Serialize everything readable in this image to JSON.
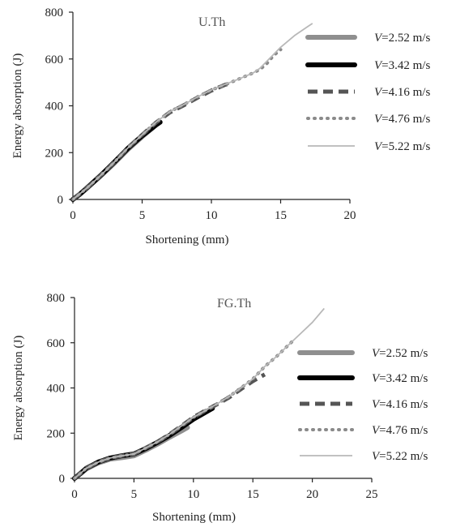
{
  "chart_data": [
    {
      "type": "line",
      "title": "U.Th",
      "xlabel": "Shortening (mm)",
      "ylabel": "Energy absorption (J)",
      "xlim": [
        0,
        20
      ],
      "ylim": [
        0,
        800
      ],
      "xticks": [
        0,
        5,
        10,
        15,
        20
      ],
      "yticks": [
        0,
        200,
        400,
        600,
        800
      ],
      "grid": false,
      "legend_position": "right",
      "series": [
        {
          "name_prefix": "V",
          "name_value": "=2.52 m/s",
          "color": "#8f8f8f",
          "style": "thick",
          "points": [
            [
              0,
              0
            ],
            [
              0.5,
              22
            ],
            [
              1,
              48
            ],
            [
              2,
              100
            ],
            [
              3,
              155
            ],
            [
              4,
              215
            ],
            [
              5,
              268
            ],
            [
              5.8,
              308
            ]
          ]
        },
        {
          "name_prefix": "V",
          "name_value": "=3.42  m/s",
          "color": "#000000",
          "style": "thick",
          "points": [
            [
              0,
              0
            ],
            [
              0.5,
              22
            ],
            [
              1,
              48
            ],
            [
              2,
              102
            ],
            [
              3,
              160
            ],
            [
              4,
              220
            ],
            [
              5,
              272
            ],
            [
              6,
              318
            ],
            [
              6.3,
              330
            ]
          ]
        },
        {
          "name_prefix": "V",
          "name_value": "=4.16  m/s",
          "color": "#555555",
          "style": "dash",
          "points": [
            [
              0,
              0
            ],
            [
              1,
              48
            ],
            [
              2,
              102
            ],
            [
              3,
              160
            ],
            [
              4,
              222
            ],
            [
              5,
              276
            ],
            [
              6,
              328
            ],
            [
              7,
              372
            ],
            [
              8,
              402
            ],
            [
              9,
              435
            ],
            [
              10,
              465
            ],
            [
              11,
              490
            ],
            [
              11.5,
              498
            ]
          ]
        },
        {
          "name_prefix": "V",
          "name_value": "=4.76  m/s",
          "color": "#8a8a8a",
          "style": "dot",
          "points": [
            [
              0,
              0
            ],
            [
              1,
              48
            ],
            [
              2,
              102
            ],
            [
              3,
              160
            ],
            [
              4,
              222
            ],
            [
              5,
              276
            ],
            [
              6,
              330
            ],
            [
              7,
              375
            ],
            [
              8,
              405
            ],
            [
              9,
              438
            ],
            [
              10,
              468
            ],
            [
              11,
              490
            ],
            [
              12,
              515
            ],
            [
              13,
              540
            ],
            [
              13.5,
              555
            ],
            [
              14,
              580
            ],
            [
              14.5,
              615
            ],
            [
              15,
              640
            ]
          ]
        },
        {
          "name_prefix": "V",
          "name_value": "=5.22  m/s",
          "color": "#b8b8b8",
          "style": "thin",
          "points": [
            [
              0,
              0
            ],
            [
              1,
              48
            ],
            [
              2,
              102
            ],
            [
              3,
              160
            ],
            [
              4,
              222
            ],
            [
              5,
              276
            ],
            [
              6,
              330
            ],
            [
              7,
              375
            ],
            [
              8,
              405
            ],
            [
              9,
              438
            ],
            [
              10,
              468
            ],
            [
              11,
              492
            ],
            [
              12,
              515
            ],
            [
              13,
              540
            ],
            [
              13.5,
              560
            ],
            [
              14,
              590
            ],
            [
              14.5,
              620
            ],
            [
              15,
              650
            ],
            [
              16,
              700
            ],
            [
              17,
              740
            ],
            [
              17.3,
              752
            ]
          ]
        }
      ]
    },
    {
      "type": "line",
      "title": "FG.Th",
      "xlabel": "Shortening (mm)",
      "ylabel": "Energy absorption (J)",
      "xlim": [
        0,
        25
      ],
      "ylim": [
        0,
        800
      ],
      "xticks": [
        0,
        5,
        10,
        15,
        20,
        25
      ],
      "yticks": [
        0,
        200,
        400,
        600,
        800
      ],
      "grid": false,
      "legend_position": "right",
      "series": [
        {
          "name_prefix": "V",
          "name_value": "=2.52 m/s",
          "color": "#8f8f8f",
          "style": "thick",
          "points": [
            [
              0,
              0
            ],
            [
              0.5,
              20
            ],
            [
              1,
              42
            ],
            [
              2,
              68
            ],
            [
              3,
              85
            ],
            [
              4,
              92
            ],
            [
              5,
              100
            ],
            [
              6,
              125
            ],
            [
              7,
              152
            ],
            [
              8,
              182
            ],
            [
              9,
              210
            ],
            [
              9.5,
              225
            ]
          ]
        },
        {
          "name_prefix": "V",
          "name_value": "=3.42  m/s",
          "color": "#000000",
          "style": "thick",
          "points": [
            [
              0,
              0
            ],
            [
              0.5,
              22
            ],
            [
              1,
              45
            ],
            [
              2,
              72
            ],
            [
              3,
              90
            ],
            [
              4,
              100
            ],
            [
              5,
              108
            ],
            [
              6,
              132
            ],
            [
              7,
              160
            ],
            [
              8,
              190
            ],
            [
              9,
              225
            ],
            [
              10,
              262
            ],
            [
              11,
              292
            ],
            [
              11.6,
              310
            ]
          ]
        },
        {
          "name_prefix": "V",
          "name_value": "=4.16  m/s",
          "color": "#555555",
          "style": "dash",
          "points": [
            [
              0,
              0
            ],
            [
              1,
              45
            ],
            [
              2,
              72
            ],
            [
              3,
              90
            ],
            [
              4,
              100
            ],
            [
              5,
              108
            ],
            [
              6,
              135
            ],
            [
              7,
              162
            ],
            [
              8,
              195
            ],
            [
              9,
              232
            ],
            [
              10,
              270
            ],
            [
              11,
              300
            ],
            [
              12,
              328
            ],
            [
              13,
              358
            ],
            [
              14,
              395
            ],
            [
              15,
              430
            ],
            [
              16,
              460
            ]
          ]
        },
        {
          "name_prefix": "V",
          "name_value": "=4.76  m/s",
          "color": "#8a8a8a",
          "style": "dot",
          "points": [
            [
              0,
              0
            ],
            [
              1,
              45
            ],
            [
              2,
              72
            ],
            [
              3,
              90
            ],
            [
              4,
              100
            ],
            [
              5,
              108
            ],
            [
              6,
              135
            ],
            [
              7,
              162
            ],
            [
              8,
              195
            ],
            [
              9,
              232
            ],
            [
              10,
              270
            ],
            [
              11,
              300
            ],
            [
              12,
              330
            ],
            [
              13,
              362
            ],
            [
              14,
              400
            ],
            [
              15,
              440
            ],
            [
              16,
              495
            ],
            [
              17,
              540
            ],
            [
              18,
              590
            ],
            [
              18.5,
              615
            ]
          ]
        },
        {
          "name_prefix": "V",
          "name_value": "=5.22  m/s",
          "color": "#b8b8b8",
          "style": "thin",
          "points": [
            [
              0,
              0
            ],
            [
              1,
              45
            ],
            [
              2,
              72
            ],
            [
              3,
              90
            ],
            [
              4,
              100
            ],
            [
              5,
              108
            ],
            [
              6,
              135
            ],
            [
              7,
              162
            ],
            [
              8,
              195
            ],
            [
              9,
              232
            ],
            [
              10,
              270
            ],
            [
              11,
              300
            ],
            [
              12,
              330
            ],
            [
              13,
              362
            ],
            [
              14,
              400
            ],
            [
              15,
              440
            ],
            [
              16,
              495
            ],
            [
              17,
              540
            ],
            [
              18,
              590
            ],
            [
              19,
              640
            ],
            [
              20,
              690
            ],
            [
              21,
              752
            ]
          ]
        }
      ]
    }
  ]
}
